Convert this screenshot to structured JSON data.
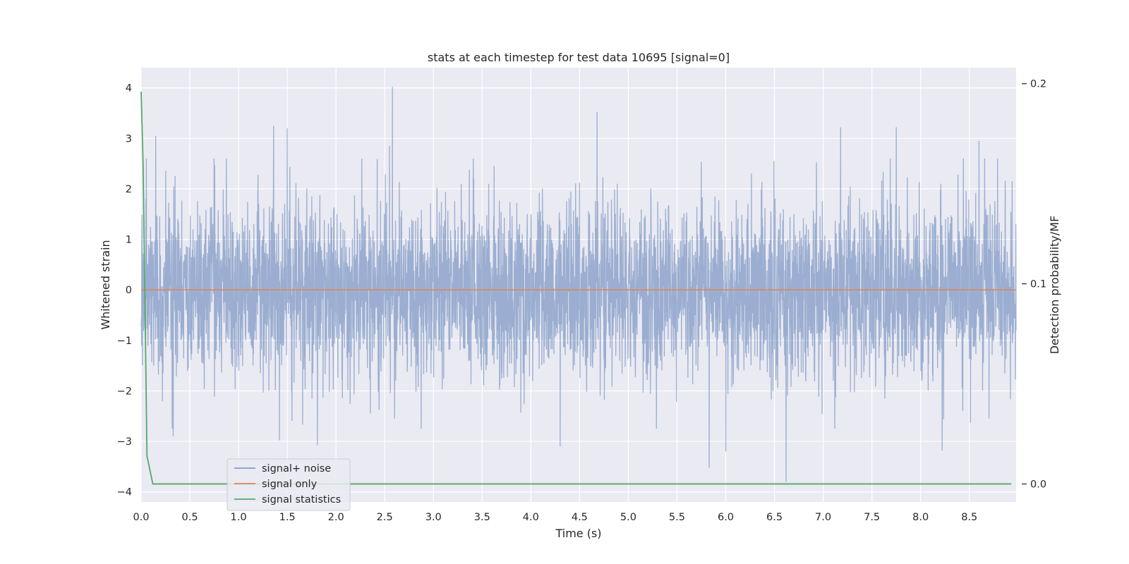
{
  "chart_data": {
    "type": "line",
    "title": "stats at each timestep for test data 10695 [signal=0]",
    "xlabel": "Time (s)",
    "ylabel": "Whitened strain",
    "y2label": "Detection probability/MF",
    "xlim": [
      0.0,
      8.98
    ],
    "ylim": [
      -4.2,
      4.4
    ],
    "y2lim": [
      -0.009,
      0.208
    ],
    "x_ticks": [
      "0.0",
      "0.5",
      "1.0",
      "1.5",
      "2.0",
      "2.5",
      "3.0",
      "3.5",
      "4.0",
      "4.5",
      "5.0",
      "5.5",
      "6.0",
      "6.5",
      "7.0",
      "7.5",
      "8.0",
      "8.5"
    ],
    "y_ticks": [
      "4",
      "3",
      "2",
      "1",
      "0",
      "−1",
      "−2",
      "−3",
      "−4"
    ],
    "y2_ticks": [
      "0.2",
      "0.1",
      "0.0"
    ],
    "grid": true,
    "legend_position": "lower-left",
    "series": [
      {
        "name": "signal+ noise",
        "color": "#4c72b0",
        "opacity": 0.5,
        "axis": "left",
        "description": "whitened noise, approx. Gaussian with std ~0.8, range -3.8 to 4.0",
        "peaks": [
          [
            0.05,
            1.8
          ],
          [
            0.15,
            3.05
          ],
          [
            1.36,
            3.25
          ],
          [
            1.5,
            3.2
          ],
          [
            2.58,
            4.02
          ],
          [
            2.55,
            2.85
          ],
          [
            4.68,
            3.52
          ],
          [
            7.18,
            3.22
          ],
          [
            7.75,
            3.22
          ],
          [
            8.6,
            2.95
          ]
        ],
        "troughs": [
          [
            0.33,
            -2.9
          ],
          [
            1.42,
            -2.98
          ],
          [
            1.81,
            -3.08
          ],
          [
            4.3,
            -3.1
          ],
          [
            5.83,
            -3.52
          ],
          [
            6.0,
            -3.2
          ],
          [
            6.62,
            -3.8
          ],
          [
            8.22,
            -3.18
          ]
        ]
      },
      {
        "name": "signal only",
        "color": "#dd8452",
        "axis": "left",
        "x": [
          0.0,
          8.98
        ],
        "y": [
          0.0,
          0.0
        ]
      },
      {
        "name": "signal statistics",
        "color": "#55a868",
        "axis": "right",
        "x": [
          0.0,
          0.02,
          0.04,
          0.06,
          0.12,
          0.5,
          1.0,
          2.0,
          3.0,
          4.0,
          5.0,
          6.0,
          7.0,
          8.0,
          8.93
        ],
        "y": [
          0.196,
          0.16,
          0.09,
          0.014,
          0.0,
          0.0,
          0.0,
          0.0,
          0.0,
          0.0,
          0.0,
          0.0,
          0.0,
          0.0,
          0.0
        ]
      }
    ]
  }
}
